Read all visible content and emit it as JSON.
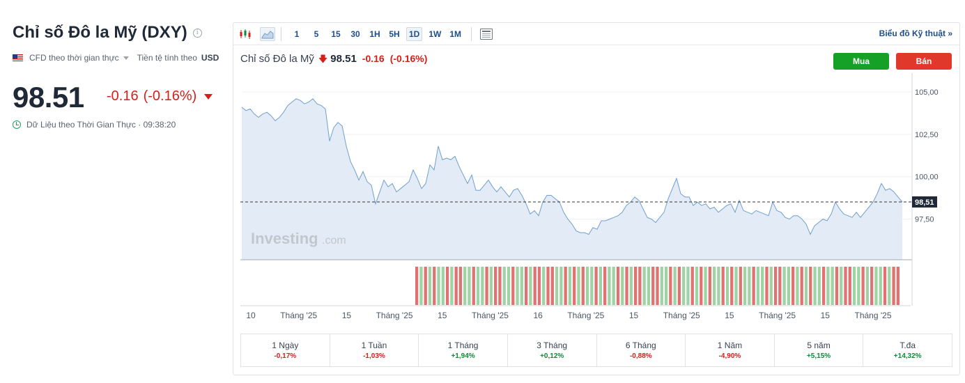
{
  "header": {
    "title": "Chỉ số Đô la Mỹ (DXY)",
    "cfd_label": "CFD theo thời gian thực",
    "currency_label": "Tiền tệ tính theo",
    "currency": "USD",
    "last_price": "98.51",
    "change": "-0.16",
    "change_pct": "(-0.16%)",
    "realtime_label": "Dữ Liệu theo Thời Gian Thực · 09:38:20"
  },
  "toolbar": {
    "timeframes": [
      "1",
      "5",
      "15",
      "30",
      "1H",
      "5H",
      "1D",
      "1W",
      "1M"
    ],
    "active_timeframe": "1D",
    "tech_chart_link": "Biểu đồ Kỹ thuật »"
  },
  "quote": {
    "name": "Chỉ số Đô la Mỹ",
    "value": "98.51",
    "change": "-0.16",
    "change_pct": "(-0.16%)"
  },
  "buttons": {
    "buy": "Mua",
    "sell": "Bán"
  },
  "watermark": {
    "brand": "Investing",
    "suffix": ".com"
  },
  "colors": {
    "up": "#0e8a39",
    "down": "#d91e18",
    "line": "#6f9fce",
    "buy": "#15a127",
    "sell": "#e0392b"
  },
  "chart_data": {
    "type": "area",
    "ylim": [
      95.1,
      105.7
    ],
    "yticks": [
      "105,00",
      "102,50",
      "100,00",
      "97,50"
    ],
    "ytick_values": [
      105,
      102.5,
      100,
      97.5
    ],
    "last_value": 98.51,
    "last_label": "98,51",
    "x_labels": [
      "10",
      "Tháng '25",
      "15",
      "Tháng '25",
      "15",
      "Tháng '25",
      "16",
      "Tháng '25",
      "15",
      "Tháng '25",
      "15",
      "Tháng '25",
      "15",
      "Tháng '25"
    ],
    "values": [
      104.1,
      103.9,
      104.0,
      103.7,
      103.5,
      103.7,
      103.8,
      103.6,
      103.3,
      103.5,
      103.8,
      104.2,
      104.4,
      104.6,
      104.5,
      104.3,
      104.4,
      104.6,
      104.3,
      104.2,
      104.0,
      102.1,
      102.9,
      103.2,
      103.0,
      101.8,
      100.9,
      100.4,
      99.8,
      100.3,
      99.7,
      99.5,
      98.4,
      99.1,
      99.8,
      99.4,
      99.6,
      99.1,
      99.3,
      99.5,
      99.7,
      100.4,
      99.9,
      99.3,
      99.6,
      100.7,
      100.4,
      101.8,
      101.0,
      101.1,
      101.0,
      101.2,
      100.6,
      100.1,
      99.6,
      100.1,
      99.2,
      99.2,
      99.5,
      99.8,
      99.4,
      99.1,
      99.4,
      99.1,
      98.8,
      99.2,
      99.3,
      98.9,
      98.4,
      97.8,
      98.0,
      97.7,
      98.5,
      98.9,
      98.9,
      98.7,
      98.5,
      97.9,
      97.5,
      97.2,
      96.8,
      96.7,
      96.7,
      96.6,
      97.0,
      96.9,
      97.4,
      97.4,
      97.5,
      97.6,
      97.7,
      97.9,
      98.3,
      98.5,
      98.8,
      98.6,
      98.1,
      97.6,
      97.5,
      97.3,
      97.6,
      97.9,
      98.7,
      99.3,
      99.9,
      99.0,
      98.8,
      98.8,
      98.3,
      98.5,
      98.3,
      98.4,
      98.1,
      98.2,
      97.9,
      98.1,
      98.3,
      98.4,
      97.9,
      98.6,
      98.0,
      97.9,
      97.8,
      98.0,
      97.9,
      97.8,
      97.7,
      98.5,
      98.0,
      97.9,
      97.6,
      97.5,
      97.7,
      97.7,
      97.5,
      97.2,
      96.6,
      97.1,
      97.3,
      97.5,
      97.4,
      97.8,
      98.5,
      98.1,
      97.8,
      97.7,
      97.6,
      97.9,
      97.6,
      97.9,
      98.2,
      98.5,
      99.0,
      99.6,
      99.2,
      99.3,
      99.1,
      98.8,
      98.51
    ],
    "volume_bars": [
      "down",
      "up",
      "down",
      "up",
      "down",
      "up",
      "up",
      "down",
      "up",
      "down",
      "down",
      "up",
      "up",
      "down",
      "up",
      "up",
      "down",
      "up",
      "down",
      "down",
      "up",
      "up",
      "down",
      "up",
      "up",
      "down",
      "up",
      "down",
      "down",
      "up",
      "down",
      "down",
      "up",
      "up",
      "down",
      "up",
      "down",
      "up",
      "down",
      "up",
      "up",
      "down",
      "up",
      "down",
      "up",
      "up",
      "down",
      "up",
      "down",
      "up",
      "down",
      "down",
      "up",
      "up",
      "down",
      "down",
      "up",
      "up",
      "down",
      "up",
      "down",
      "up",
      "up",
      "down",
      "up",
      "down",
      "up",
      "down",
      "up",
      "up",
      "down",
      "up",
      "down",
      "up",
      "down",
      "up",
      "up",
      "down",
      "up",
      "up",
      "down",
      "up",
      "down",
      "down",
      "up",
      "up",
      "down",
      "up",
      "down",
      "up",
      "down",
      "up",
      "up",
      "down",
      "up",
      "up",
      "down",
      "up",
      "down",
      "down",
      "up",
      "up",
      "down",
      "up",
      "down",
      "up",
      "up",
      "down",
      "up",
      "down",
      "down"
    ]
  },
  "performance": [
    {
      "label": "1 Ngày",
      "value": "-0,17%",
      "dir": "neg"
    },
    {
      "label": "1 Tuần",
      "value": "-1,03%",
      "dir": "neg"
    },
    {
      "label": "1 Tháng",
      "value": "+1,94%",
      "dir": "pos"
    },
    {
      "label": "3 Tháng",
      "value": "+0,12%",
      "dir": "pos"
    },
    {
      "label": "6 Tháng",
      "value": "-0,88%",
      "dir": "neg"
    },
    {
      "label": "1 Năm",
      "value": "-4,90%",
      "dir": "neg"
    },
    {
      "label": "5 năm",
      "value": "+5,15%",
      "dir": "pos"
    },
    {
      "label": "T.đa",
      "value": "+14,32%",
      "dir": "pos"
    }
  ]
}
